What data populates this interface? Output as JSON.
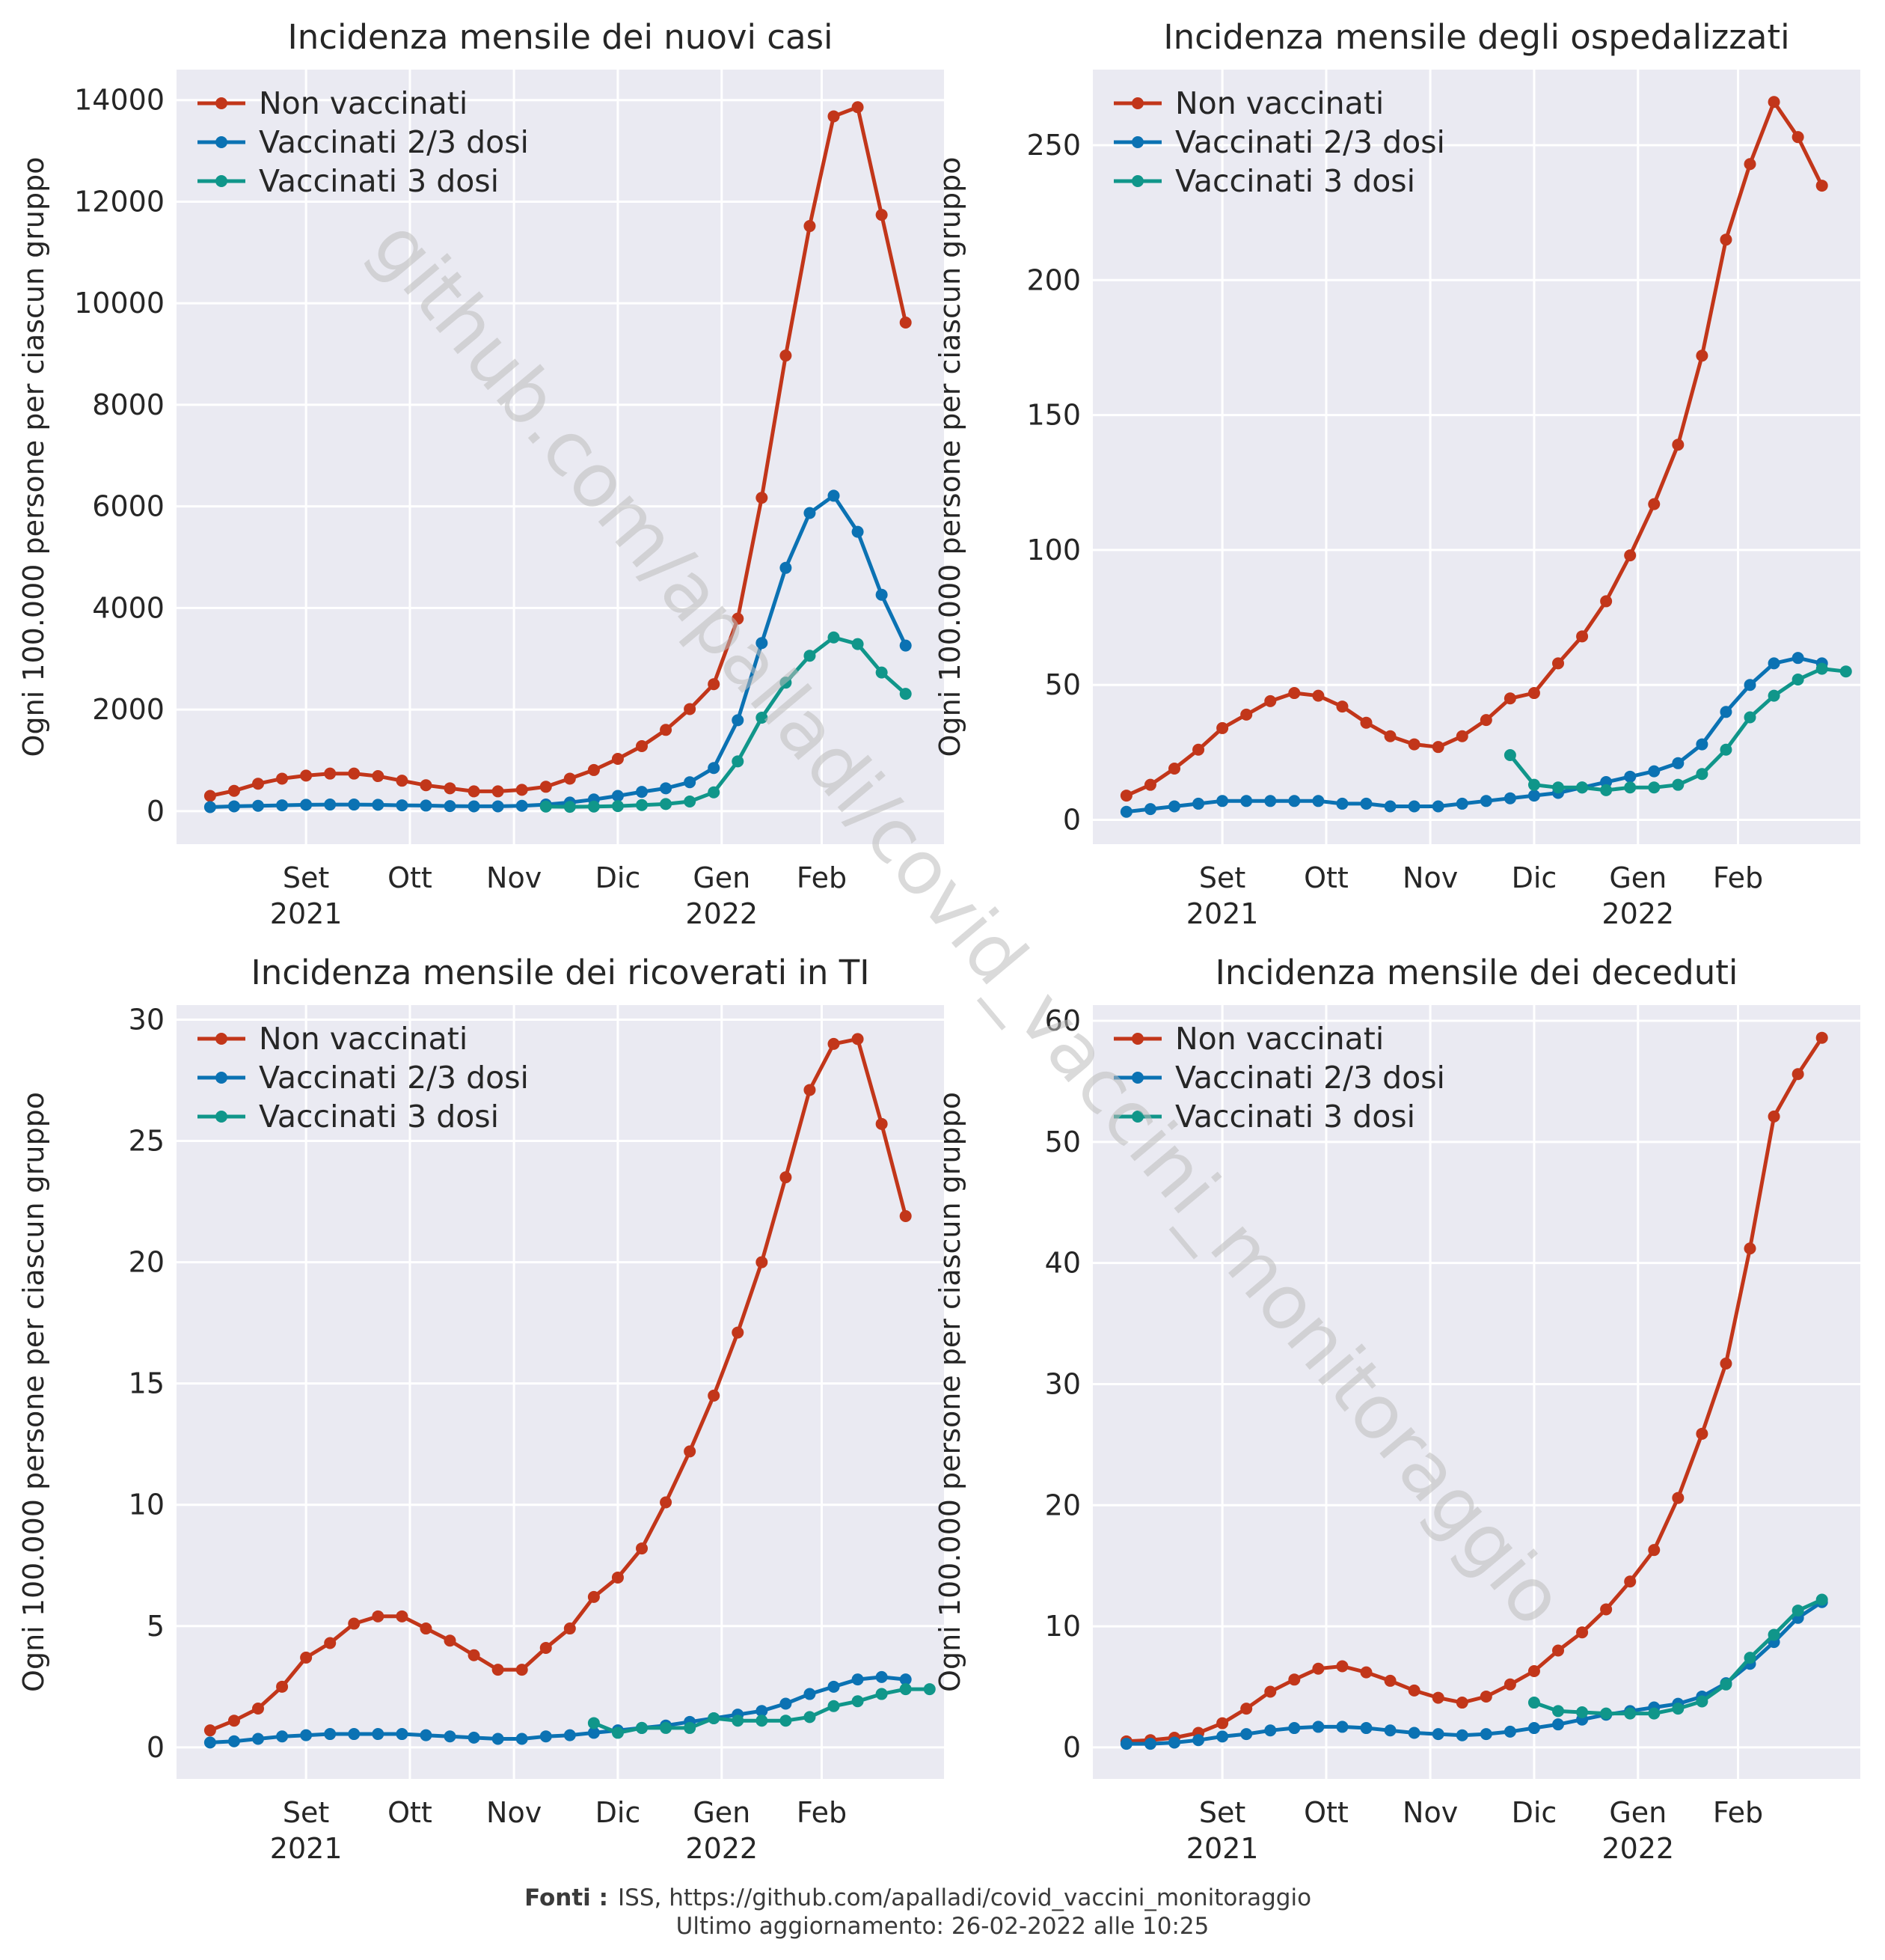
{
  "watermark": "github.com/apalladi/covid_vaccini_monitoraggio",
  "footer": {
    "label": "Fonti :",
    "sources": "ISS, https://github.com/apalladi/covid_vaccini_monitoraggio",
    "updated": "Ultimo aggiornamento: 26-02-2022 alle 10:25"
  },
  "colors": {
    "non_vaccinati": "#c2361a",
    "vaccinati_2_3": "#0b72b3",
    "vaccinati_3": "#10968a",
    "panel_bg": "#eaeaf2",
    "grid": "#ffffff"
  },
  "chart_data": [
    {
      "type": "line",
      "title": "Incidenza mensile dei nuovi casi",
      "ylabel": "Ogni 100.000 persone per ciascun gruppo",
      "xlabel": "",
      "x_ticks": [
        "Set\n2021",
        "Ott",
        "Nov",
        "Dic",
        "Gen\n2022",
        "Feb"
      ],
      "y_ticks": [
        0,
        2000,
        4000,
        6000,
        8000,
        10000,
        12000,
        14000
      ],
      "ylim": [
        -650,
        14600
      ],
      "grid": true,
      "legend": "top-left",
      "series": [
        {
          "name": "Non vaccinati",
          "start": 0,
          "values": [
            300,
            400,
            540,
            640,
            700,
            740,
            740,
            690,
            600,
            510,
            450,
            390,
            390,
            420,
            480,
            640,
            810,
            1030,
            1280,
            1600,
            2010,
            2500,
            3790,
            6170,
            8970,
            11520,
            13680,
            13860,
            11740,
            9620
          ]
        },
        {
          "name": "Vaccinati 2/3 dosi",
          "start": 0,
          "values": [
            80,
            95,
            105,
            115,
            125,
            130,
            130,
            125,
            115,
            110,
            100,
            95,
            95,
            105,
            130,
            170,
            230,
            300,
            380,
            450,
            570,
            850,
            1790,
            3310,
            4790,
            5870,
            6210,
            5500,
            4260,
            3260
          ]
        },
        {
          "name": "Vaccinati 3 dosi",
          "start": 14,
          "values": [
            90,
            85,
            90,
            100,
            120,
            140,
            190,
            370,
            980,
            1840,
            2530,
            3060,
            3420,
            3290,
            2730,
            2310
          ]
        }
      ]
    },
    {
      "type": "line",
      "title": "Incidenza mensile degli ospedalizzati",
      "ylabel": "Ogni 100.000 persone per ciascun gruppo",
      "xlabel": "",
      "x_ticks": [
        "Set\n2021",
        "Ott",
        "Nov",
        "Dic",
        "Gen\n2022",
        "Feb"
      ],
      "y_ticks": [
        0,
        50,
        100,
        150,
        200,
        250
      ],
      "ylim": [
        -9,
        278
      ],
      "grid": true,
      "legend": "top-left",
      "series": [
        {
          "name": "Non vaccinati",
          "start": 0,
          "values": [
            9,
            13,
            19,
            26,
            34,
            39,
            44,
            47,
            46,
            42,
            36,
            31,
            28,
            27,
            31,
            37,
            45,
            47,
            58,
            68,
            81,
            98,
            117,
            139,
            172,
            215,
            243,
            266,
            253,
            235
          ]
        },
        {
          "name": "Vaccinati 2/3 dosi",
          "start": 0,
          "values": [
            3,
            4,
            5,
            6,
            7,
            7,
            7,
            7,
            7,
            6,
            6,
            5,
            5,
            5,
            6,
            7,
            8,
            9,
            10,
            12,
            14,
            16,
            18,
            21,
            28,
            40,
            50,
            58,
            60,
            58
          ]
        },
        {
          "name": "Vaccinati 3 dosi",
          "start": 16,
          "values": [
            24,
            13,
            12,
            12,
            11,
            12,
            12,
            13,
            17,
            26,
            38,
            46,
            52,
            56,
            55
          ]
        }
      ]
    },
    {
      "type": "line",
      "title": "Incidenza mensile dei ricoverati in TI",
      "ylabel": "Ogni 100.000 persone per ciascun gruppo",
      "xlabel": "",
      "x_ticks": [
        "Set\n2021",
        "Ott",
        "Nov",
        "Dic",
        "Gen\n2022",
        "Feb"
      ],
      "y_ticks": [
        0,
        5,
        10,
        15,
        20,
        25,
        30
      ],
      "ylim": [
        -1.3,
        30.6
      ],
      "grid": true,
      "legend": "top-left",
      "series": [
        {
          "name": "Non vaccinati",
          "start": 0,
          "values": [
            0.7,
            1.1,
            1.6,
            2.5,
            3.7,
            4.3,
            5.1,
            5.4,
            5.4,
            4.9,
            4.4,
            3.8,
            3.2,
            3.2,
            4.1,
            4.9,
            6.2,
            7.0,
            8.2,
            10.1,
            12.2,
            14.5,
            17.1,
            20.0,
            23.5,
            27.1,
            29.0,
            29.2,
            25.7,
            21.9
          ]
        },
        {
          "name": "Vaccinati 2/3 dosi",
          "start": 0,
          "values": [
            0.2,
            0.25,
            0.35,
            0.45,
            0.5,
            0.55,
            0.55,
            0.55,
            0.55,
            0.5,
            0.45,
            0.4,
            0.35,
            0.35,
            0.45,
            0.5,
            0.6,
            0.7,
            0.8,
            0.9,
            1.05,
            1.2,
            1.35,
            1.5,
            1.8,
            2.2,
            2.5,
            2.8,
            2.9,
            2.8
          ]
        },
        {
          "name": "Vaccinati 3 dosi",
          "start": 16,
          "values": [
            1.0,
            0.6,
            0.8,
            0.8,
            0.8,
            1.2,
            1.1,
            1.1,
            1.1,
            1.25,
            1.7,
            1.9,
            2.2,
            2.4,
            2.4
          ]
        }
      ]
    },
    {
      "type": "line",
      "title": "Incidenza mensile dei deceduti",
      "ylabel": "Ogni 100.000 persone per ciascun gruppo",
      "xlabel": "",
      "x_ticks": [
        "Set\n2021",
        "Ott",
        "Nov",
        "Dic",
        "Gen\n2022",
        "Feb"
      ],
      "y_ticks": [
        0,
        10,
        20,
        30,
        40,
        50,
        60
      ],
      "ylim": [
        -2.6,
        61.3
      ],
      "grid": true,
      "legend": "top-left",
      "series": [
        {
          "name": "Non vaccinati",
          "start": 0,
          "values": [
            0.5,
            0.6,
            0.8,
            1.2,
            2.0,
            3.2,
            4.6,
            5.6,
            6.5,
            6.7,
            6.2,
            5.5,
            4.7,
            4.1,
            3.7,
            4.2,
            5.2,
            6.3,
            8.0,
            9.5,
            11.4,
            13.7,
            16.3,
            20.6,
            25.9,
            31.7,
            41.2,
            52.1,
            55.6,
            58.6
          ]
        },
        {
          "name": "Vaccinati 2/3 dosi",
          "start": 0,
          "values": [
            0.3,
            0.3,
            0.4,
            0.6,
            0.9,
            1.1,
            1.4,
            1.6,
            1.7,
            1.7,
            1.6,
            1.4,
            1.2,
            1.1,
            1.0,
            1.1,
            1.3,
            1.6,
            1.9,
            2.3,
            2.7,
            3.0,
            3.3,
            3.6,
            4.2,
            5.3,
            6.9,
            8.7,
            10.7,
            12.0
          ]
        },
        {
          "name": "Vaccinati 3 dosi",
          "start": 17,
          "values": [
            3.7,
            3.0,
            2.9,
            2.8,
            2.8,
            2.8,
            3.2,
            3.8,
            5.2,
            7.4,
            9.3,
            11.3,
            12.2
          ]
        }
      ]
    }
  ]
}
